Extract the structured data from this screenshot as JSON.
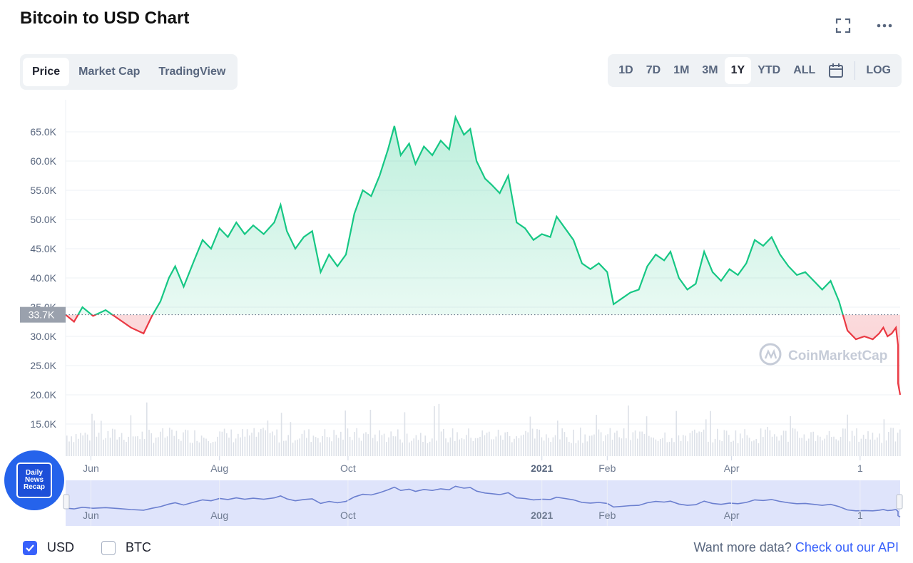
{
  "header": {
    "title": "Bitcoin to USD Chart"
  },
  "tabs": [
    {
      "label": "Price",
      "active": true
    },
    {
      "label": "Market Cap",
      "active": false
    },
    {
      "label": "TradingView",
      "active": false
    }
  ],
  "ranges": [
    {
      "label": "1D",
      "active": false
    },
    {
      "label": "7D",
      "active": false
    },
    {
      "label": "1M",
      "active": false
    },
    {
      "label": "3M",
      "active": false
    },
    {
      "label": "1Y",
      "active": true
    },
    {
      "label": "YTD",
      "active": false
    },
    {
      "label": "ALL",
      "active": false
    }
  ],
  "scale_label": "LOG",
  "footer": {
    "usd_label": "USD",
    "btc_label": "BTC",
    "usd_checked": true,
    "btc_checked": false,
    "more_text": "Want more data?",
    "api_link": "Check out our API"
  },
  "watermark": "CoinMarketCap",
  "badge": {
    "line1": "Daily",
    "line2": "News",
    "line3": "Recap"
  },
  "colors": {
    "up": "#16c784",
    "down": "#ea3943",
    "accent": "#3861fb",
    "navigator": "#6b7fcf"
  },
  "chart_data": {
    "type": "line",
    "title": "Bitcoin to USD Chart",
    "xlabel": "",
    "ylabel": "",
    "ylim": [
      10000,
      70000
    ],
    "yticks": [
      15000,
      20000,
      25000,
      30000,
      35000,
      40000,
      45000,
      50000,
      55000,
      60000,
      65000
    ],
    "ytick_labels": [
      "15.0K",
      "20.0K",
      "25.0K",
      "30.0K",
      "35.0K",
      "40.0K",
      "45.0K",
      "50.0K",
      "55.0K",
      "60.0K",
      "65.0K"
    ],
    "x_range": [
      "2021-05-20",
      "2022-06-20"
    ],
    "xticks": [
      {
        "date": "2021-06-01",
        "label": "Jun",
        "bold": false
      },
      {
        "date": "2021-08-01",
        "label": "Aug",
        "bold": false
      },
      {
        "date": "2021-10-01",
        "label": "Oct",
        "bold": false
      },
      {
        "date": "2022-01-01",
        "label": "2021",
        "bold": true
      },
      {
        "date": "2022-02-01",
        "label": "Feb",
        "bold": false
      },
      {
        "date": "2022-04-01",
        "label": "Apr",
        "bold": false
      },
      {
        "date": "2022-06-01",
        "label": "1",
        "bold": false
      }
    ],
    "reference_value": 33700,
    "reference_label": "33.7K",
    "grid": true,
    "legend": "none",
    "series": [
      {
        "points": [
          [
            "2021-05-20",
            33700
          ],
          [
            "2021-05-24",
            32500
          ],
          [
            "2021-05-28",
            35000
          ],
          [
            "2021-06-02",
            33500
          ],
          [
            "2021-06-08",
            34500
          ],
          [
            "2021-06-14",
            33000
          ],
          [
            "2021-06-20",
            31500
          ],
          [
            "2021-06-26",
            30500
          ],
          [
            "2021-06-30",
            33500
          ],
          [
            "2021-07-04",
            36000
          ],
          [
            "2021-07-08",
            40000
          ],
          [
            "2021-07-11",
            42000
          ],
          [
            "2021-07-15",
            38500
          ],
          [
            "2021-07-20",
            43000
          ],
          [
            "2021-07-24",
            46500
          ],
          [
            "2021-07-28",
            45000
          ],
          [
            "2021-08-01",
            48500
          ],
          [
            "2021-08-05",
            47000
          ],
          [
            "2021-08-09",
            49500
          ],
          [
            "2021-08-13",
            47500
          ],
          [
            "2021-08-17",
            49000
          ],
          [
            "2021-08-22",
            47500
          ],
          [
            "2021-08-27",
            49500
          ],
          [
            "2021-08-30",
            52500
          ],
          [
            "2021-09-02",
            48000
          ],
          [
            "2021-09-06",
            45000
          ],
          [
            "2021-09-10",
            47000
          ],
          [
            "2021-09-14",
            48000
          ],
          [
            "2021-09-18",
            41000
          ],
          [
            "2021-09-22",
            44000
          ],
          [
            "2021-09-26",
            42000
          ],
          [
            "2021-09-30",
            44000
          ],
          [
            "2021-10-04",
            51000
          ],
          [
            "2021-10-08",
            55000
          ],
          [
            "2021-10-12",
            54000
          ],
          [
            "2021-10-16",
            57500
          ],
          [
            "2021-10-20",
            62000
          ],
          [
            "2021-10-23",
            66000
          ],
          [
            "2021-10-26",
            61000
          ],
          [
            "2021-10-30",
            63000
          ],
          [
            "2021-11-02",
            59500
          ],
          [
            "2021-11-06",
            62500
          ],
          [
            "2021-11-10",
            61000
          ],
          [
            "2021-11-14",
            63500
          ],
          [
            "2021-11-18",
            62000
          ],
          [
            "2021-11-21",
            67500
          ],
          [
            "2021-11-25",
            64500
          ],
          [
            "2021-11-28",
            65500
          ],
          [
            "2021-12-01",
            60000
          ],
          [
            "2021-12-05",
            57000
          ],
          [
            "2021-12-08",
            56000
          ],
          [
            "2021-12-12",
            54500
          ],
          [
            "2021-12-16",
            57500
          ],
          [
            "2021-12-20",
            49500
          ],
          [
            "2021-12-24",
            48500
          ],
          [
            "2021-12-28",
            46500
          ],
          [
            "2022-01-01",
            47500
          ],
          [
            "2022-01-05",
            47000
          ],
          [
            "2022-01-08",
            50500
          ],
          [
            "2022-01-12",
            48500
          ],
          [
            "2022-01-16",
            46500
          ],
          [
            "2022-01-20",
            42500
          ],
          [
            "2022-01-24",
            41500
          ],
          [
            "2022-01-28",
            42500
          ],
          [
            "2022-02-01",
            41000
          ],
          [
            "2022-02-04",
            35500
          ],
          [
            "2022-02-08",
            36500
          ],
          [
            "2022-02-12",
            37500
          ],
          [
            "2022-02-16",
            38000
          ],
          [
            "2022-02-20",
            42000
          ],
          [
            "2022-02-24",
            44000
          ],
          [
            "2022-02-28",
            43000
          ],
          [
            "2022-03-03",
            44500
          ],
          [
            "2022-03-07",
            40000
          ],
          [
            "2022-03-11",
            38000
          ],
          [
            "2022-03-15",
            39000
          ],
          [
            "2022-03-19",
            44500
          ],
          [
            "2022-03-23",
            41000
          ],
          [
            "2022-03-27",
            39500
          ],
          [
            "2022-03-31",
            41500
          ],
          [
            "2022-04-04",
            40500
          ],
          [
            "2022-04-08",
            42500
          ],
          [
            "2022-04-12",
            46500
          ],
          [
            "2022-04-16",
            45500
          ],
          [
            "2022-04-20",
            47000
          ],
          [
            "2022-04-24",
            44000
          ],
          [
            "2022-04-28",
            42000
          ],
          [
            "2022-05-02",
            40500
          ],
          [
            "2022-05-06",
            41000
          ],
          [
            "2022-05-10",
            39500
          ],
          [
            "2022-05-14",
            38000
          ],
          [
            "2022-05-18",
            39500
          ],
          [
            "2022-05-22",
            36000
          ],
          [
            "2022-05-26",
            31000
          ],
          [
            "2022-05-30",
            29500
          ],
          [
            "2022-06-03",
            30000
          ],
          [
            "2022-06-07",
            29500
          ],
          [
            "2022-06-10",
            30500
          ],
          [
            "2022-06-12",
            31500
          ],
          [
            "2022-06-14",
            30000
          ],
          [
            "2022-06-16",
            30500
          ],
          [
            "2022-06-18",
            31500
          ],
          [
            "2022-06-19",
            28500
          ],
          [
            "2022-06-19",
            22000
          ],
          [
            "2022-06-20",
            20000
          ]
        ]
      }
    ]
  }
}
